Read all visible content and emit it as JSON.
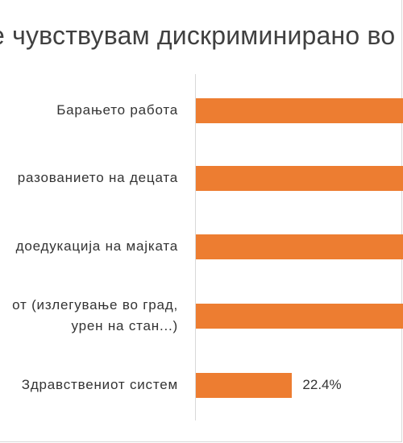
{
  "chart_data": {
    "type": "bar",
    "orientation": "horizontal",
    "title": "е чувствувам дискриминирано во",
    "categories": [
      "Барањето работа",
      "разованието на децата",
      "доедукација на мајката",
      "от (излегување во град, урен на стан...)",
      "Здравствениот систем"
    ],
    "category_lines": [
      [
        "Барањето работа"
      ],
      [
        "разованието на децата"
      ],
      [
        "доедукација на мајката"
      ],
      [
        "от (излегување во град,",
        "урен на стан...)"
      ],
      [
        "Здравствениот систем"
      ]
    ],
    "values": [
      null,
      null,
      null,
      null,
      22.4
    ],
    "value_labels": [
      "",
      "",
      "",
      "",
      "22.4%"
    ],
    "bar_color": "#ed7d31",
    "xlim": [
      0,
      48.2
    ],
    "legend": "none",
    "grid": false
  }
}
